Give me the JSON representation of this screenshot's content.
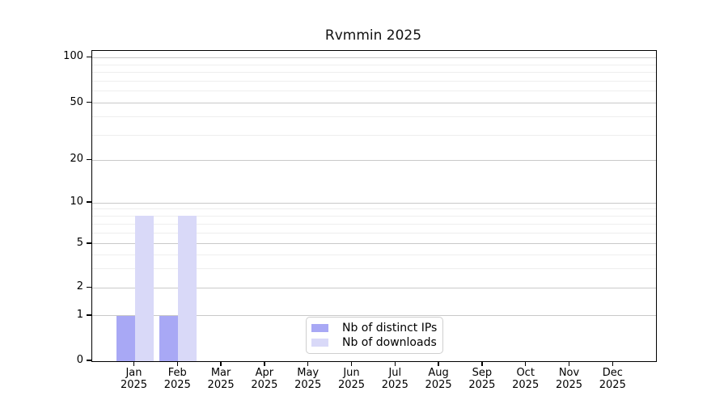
{
  "chart_data": {
    "type": "bar",
    "title": "Rvmmin 2025",
    "categories": [
      "Jan",
      "Feb",
      "Mar",
      "Apr",
      "May",
      "Jun",
      "Jul",
      "Aug",
      "Sep",
      "Oct",
      "Nov",
      "Dec"
    ],
    "category_year": "2025",
    "series": [
      {
        "name": "Nb of distinct IPs",
        "color": "#a8a8f5",
        "values": [
          1,
          1,
          0,
          0,
          0,
          0,
          0,
          0,
          0,
          0,
          0,
          0
        ]
      },
      {
        "name": "Nb of downloads",
        "color": "#d9d9f8",
        "values": [
          8,
          8,
          0,
          0,
          0,
          0,
          0,
          0,
          0,
          0,
          0,
          0
        ]
      }
    ],
    "xlabel": "",
    "ylabel": "",
    "y_axis": {
      "scale": "log above 1, linear 0-1",
      "major_ticks": [
        0,
        1,
        2,
        5,
        10,
        20,
        50,
        100
      ],
      "minor_ticks": [
        3,
        4,
        6,
        7,
        8,
        9,
        30,
        40,
        60,
        70,
        80,
        90
      ],
      "range": [
        0,
        115
      ]
    },
    "grid": {
      "horizontal": true,
      "major_color": "#c9c9c9",
      "minor_color": "#eeeeee"
    },
    "legend": {
      "position": "bottom-center-inside"
    }
  }
}
